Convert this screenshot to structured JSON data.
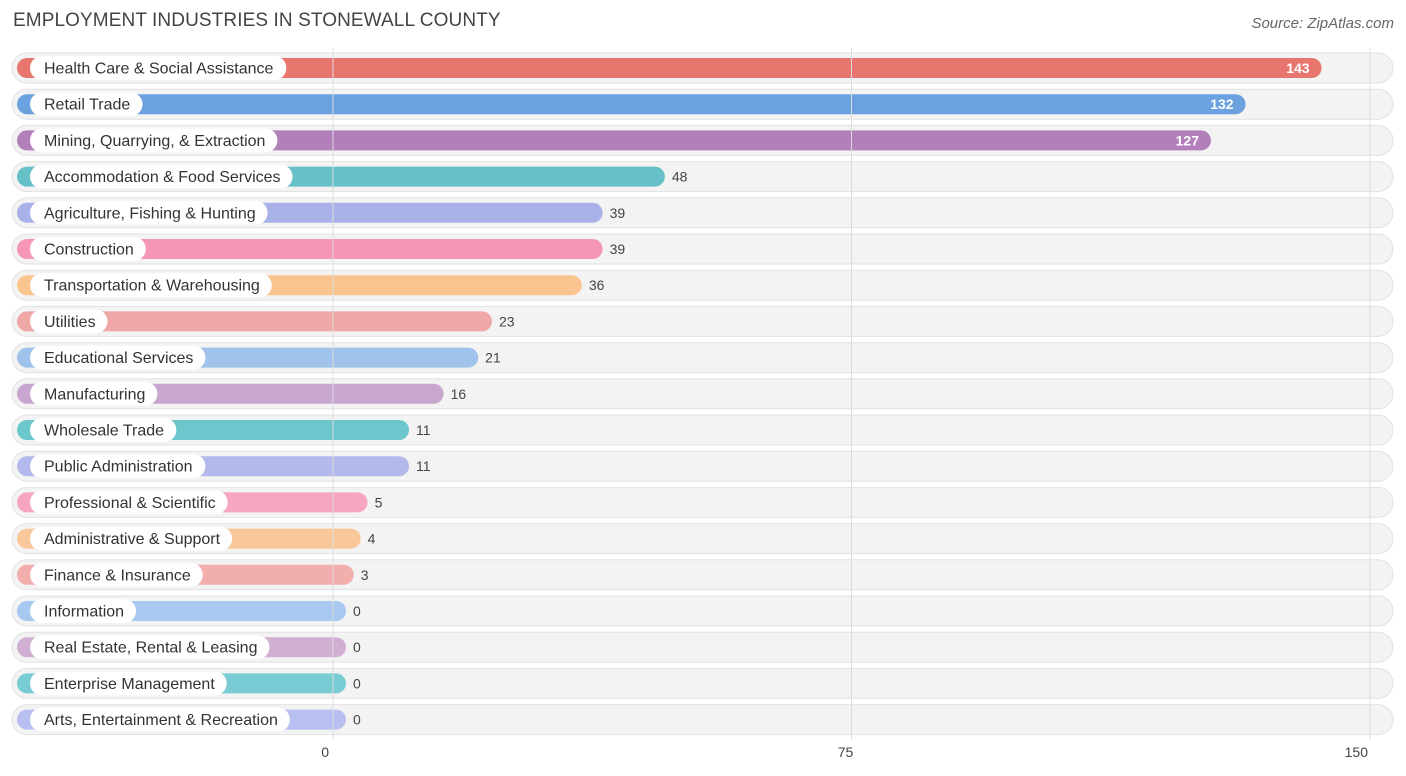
{
  "header": {
    "title": "EMPLOYMENT INDUSTRIES IN STONEWALL COUNTY",
    "source": "Source: ZipAtlas.com"
  },
  "chart_data": {
    "type": "bar",
    "orientation": "horizontal",
    "title": "EMPLOYMENT INDUSTRIES IN STONEWALL COUNTY",
    "xlabel": "",
    "ylabel": "",
    "xlim": [
      0,
      150
    ],
    "x_ticks": [
      0,
      75,
      150
    ],
    "grid": true,
    "categories": [
      "Health Care & Social Assistance",
      "Retail Trade",
      "Mining, Quarrying, & Extraction",
      "Accommodation & Food Services",
      "Agriculture, Fishing & Hunting",
      "Construction",
      "Transportation & Warehousing",
      "Utilities",
      "Educational Services",
      "Manufacturing",
      "Wholesale Trade",
      "Public Administration",
      "Professional & Scientific",
      "Administrative & Support",
      "Finance & Insurance",
      "Information",
      "Real Estate, Rental & Leasing",
      "Enterprise Management",
      "Arts, Entertainment & Recreation"
    ],
    "values": [
      143,
      132,
      127,
      48,
      39,
      39,
      36,
      23,
      21,
      16,
      11,
      11,
      5,
      4,
      3,
      0,
      0,
      0,
      0
    ],
    "colors": [
      "#e8766f",
      "#6aa1de",
      "#b27fbb",
      "#66c0c8",
      "#a9b2e8",
      "#f597b4",
      "#f9c48e",
      "#f0a8a6",
      "#9fc3ea",
      "#c9a6cf",
      "#6cc7cd",
      "#b3b9ea",
      "#f6a6c0",
      "#f9c89a",
      "#f2aeac",
      "#a7c8ef",
      "#d0afd3",
      "#79ccd3",
      "#b9bff0"
    ]
  }
}
